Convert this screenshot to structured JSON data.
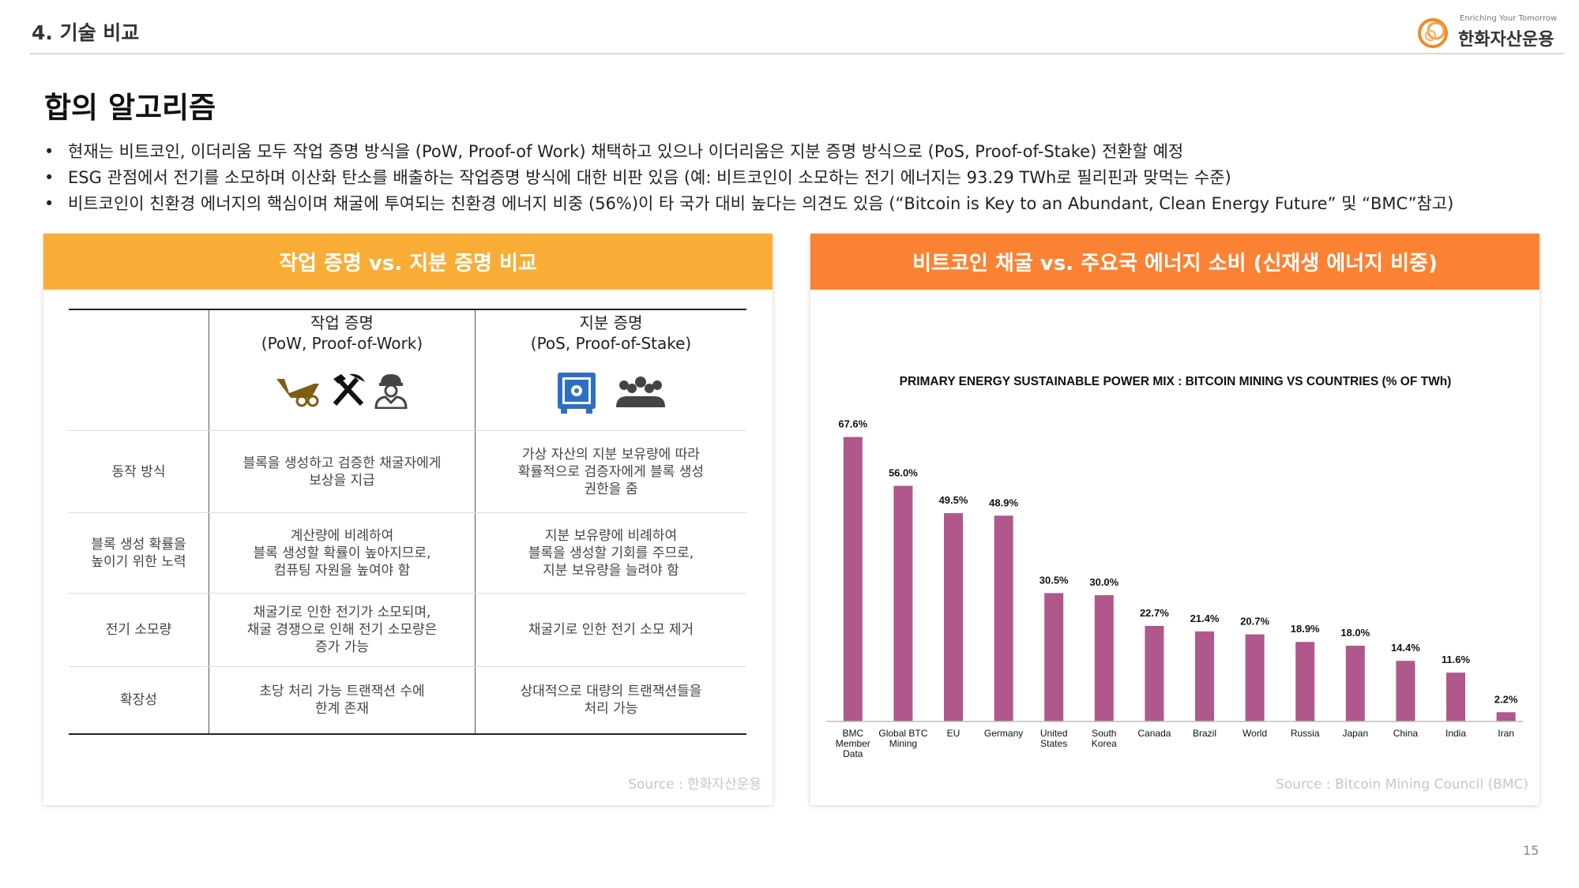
{
  "header": {
    "section_label": "4. 기술 비교",
    "logo_tagline": "Enriching Your Tomorrow",
    "logo_name": "한화자산운용"
  },
  "title": "합의 알고리즘",
  "bullets": [
    "현재는 비트코인, 이더리움 모두 작업 증명 방식을 (PoW, Proof-of Work) 채택하고 있으나 이더리움은 지분 증명 방식으로 (PoS, Proof-of-Stake) 전환할 예정",
    "ESG 관점에서 전기를 소모하며 이산화 탄소를 배출하는 작업증명 방식에 대한 비판 있음 (예: 비트코인이 소모하는 전기 에너지는 93.29 TWh로 필리핀과 맞먹는 수준)",
    "비트코인이 친환경 에너지의 핵심이며 채굴에 투여되는 친환경 에너지 비중 (56%)이 타 국가 대비 높다는 의견도 있음 (“Bitcoin is Key to an Abundant, Clean Energy Future” 및 “BMC”참고)"
  ],
  "left_panel": {
    "header": "작업 증명 vs. 지분 증명 비교",
    "col_pow": "작업 증명\n(PoW, Proof-of-Work)",
    "col_pos": "지분 증명\n(PoS, Proof-of-Stake)",
    "rows": [
      {
        "label": "동작 방식",
        "pow": "블록을 생성하고 검증한 채굴자에게\n보상을 지급",
        "pos": "가상 자산의 지분 보유량에 따라\n확률적으로 검증자에게 블록 생성\n권한을 줌"
      },
      {
        "label": "블록 생성 확률을\n높이기 위한 노력",
        "pow": "계산량에 비례하여\n블록 생성할 확률이 높아지므로,\n컴퓨팅 자원을 높여야 함",
        "pos": "지분 보유량에 비례하여\n블록을 생성할 기회를 주므로,\n지분 보유량을 늘려야 함"
      },
      {
        "label": "전기 소모량",
        "pow": "채굴기로 인한 전기가 소모되며,\n채굴 경쟁으로 인해 전기 소모량은\n증가 가능",
        "pos": "채굴기로 인한 전기 소모 제거"
      },
      {
        "label": "확장성",
        "pow": "초당 처리 가능 트랜잭션 수에\n한계 존재",
        "pos": "상대적으로 대량의 트랜잭션들을\n처리 가능"
      }
    ],
    "source": "Source : 한화자산운용",
    "icons": [
      "wheelbarrow-icon",
      "hammer-pickaxe-icon",
      "miner-worker-icon",
      "safe-vault-icon",
      "group-people-icon"
    ],
    "colors": {
      "pow_icons": "#7d5f14",
      "pos_icons": "#2f6fc1"
    }
  },
  "right_panel": {
    "header": "비트코인 채굴 vs. 주요국 에너지 소비 (신재생 에너지 비중)",
    "source": "Source : Bitcoin Mining Council (BMC)"
  },
  "chart_data": {
    "type": "bar",
    "title": "PRIMARY ENERGY SUSTAINABLE POWER MIX : BITCOIN MINING VS COUNTRIES (% OF TWh)",
    "categories": [
      "BMC\nMember\nData",
      "Global BTC\nMining",
      "EU",
      "Germany",
      "United\nStates",
      "South\nKorea",
      "Canada",
      "Brazil",
      "World",
      "Russia",
      "Japan",
      "China",
      "India",
      "Iran"
    ],
    "values": [
      67.6,
      56.0,
      49.5,
      48.9,
      30.5,
      30.0,
      22.7,
      21.4,
      20.7,
      18.9,
      18.0,
      14.4,
      11.6,
      2.2
    ],
    "data_labels": [
      "67.6%",
      "56.0%",
      "49.5%",
      "48.9%",
      "30.5%",
      "30.0%",
      "22.7%",
      "21.4%",
      "20.7%",
      "18.9%",
      "18.0%",
      "14.4%",
      "11.6%",
      "2.2%"
    ],
    "ylim": [
      0,
      70
    ],
    "bar_color": "#b0588b",
    "grid": false,
    "legend": "none"
  },
  "page_number": "15"
}
